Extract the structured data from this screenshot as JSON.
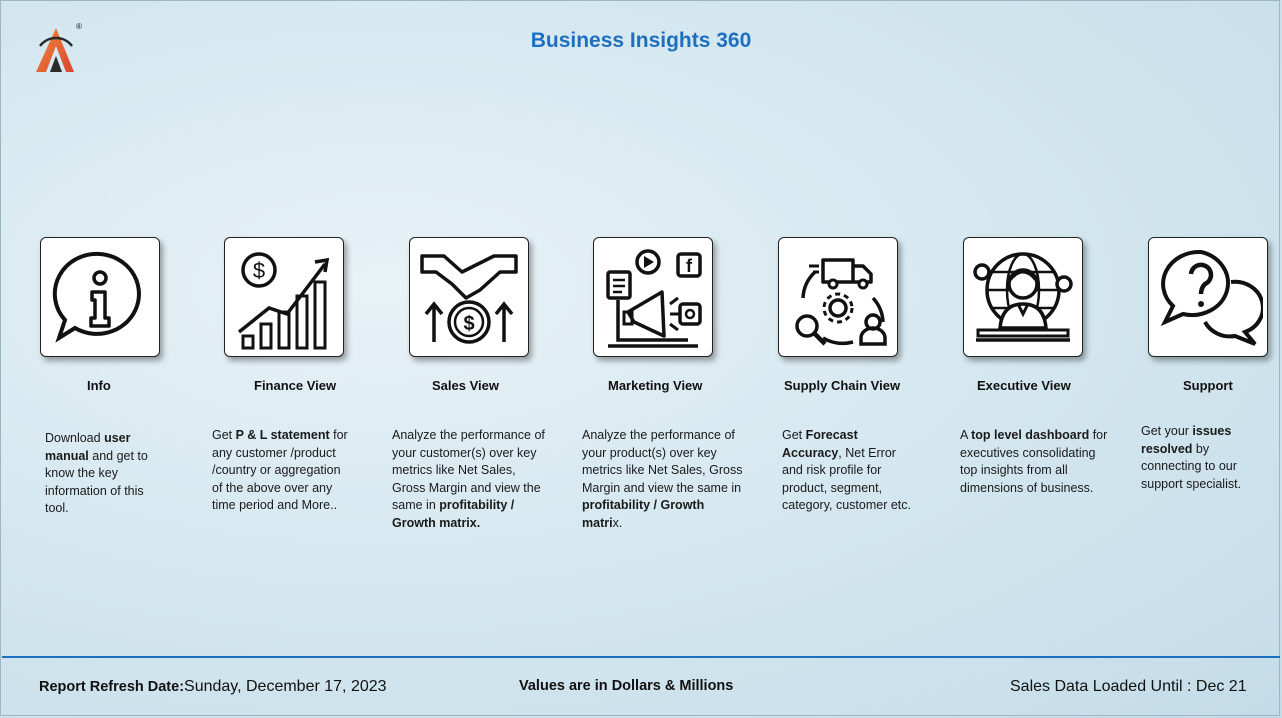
{
  "header": {
    "title": "Business Insights 360",
    "logo_icon": "atliq-logo-icon",
    "registered_mark": "®"
  },
  "tiles": [
    {
      "label": "Info",
      "icon": "info-bubble-icon",
      "desc": [
        [
          " Download ",
          false
        ],
        [
          "user manual",
          true
        ],
        [
          " and get to know the key information of this tool.",
          false
        ]
      ]
    },
    {
      "label": "Finance View",
      "icon": "finance-growth-chart-icon",
      "desc": [
        [
          "Get  ",
          false
        ],
        [
          "P & L statement",
          true
        ],
        [
          " for any customer /product /country or aggregation of the above over any time period and More..",
          false
        ]
      ]
    },
    {
      "label": "Sales View",
      "icon": "sales-handshake-icon",
      "desc": [
        [
          "Analyze the performance of your customer(s) over key metrics like Net Sales, Gross Margin and view the same in ",
          false
        ],
        [
          "profitability / Growth matrix.",
          true
        ]
      ]
    },
    {
      "label": "Marketing View",
      "icon": "marketing-megaphone-icon",
      "desc": [
        [
          " Analyze the performance of your product(s) over key metrics like Net Sales, Gross Margin and view the same in ",
          false
        ],
        [
          "profitability / Growth matri",
          true
        ],
        [
          "x.",
          false
        ]
      ]
    },
    {
      "label": "Supply Chain View",
      "icon": "supply-chain-truck-icon",
      "desc": [
        [
          "Get ",
          false
        ],
        [
          "Forecast Accuracy",
          true
        ],
        [
          ", Net Error and risk profile for product, segment, category, customer etc.",
          false
        ]
      ]
    },
    {
      "label": "Executive View",
      "icon": "executive-globe-icon",
      "desc": [
        [
          " A ",
          false
        ],
        [
          "top level dashboard",
          true
        ],
        [
          " for executives consolidating top insights from all dimensions of business.",
          false
        ]
      ]
    },
    {
      "label": "Support",
      "icon": "support-question-bubble-icon",
      "desc": [
        [
          "Get your ",
          false
        ],
        [
          "issues resolved",
          true
        ],
        [
          " by connecting to our support specialist.",
          false
        ]
      ]
    }
  ],
  "footer": {
    "refresh_label": "Report Refresh Date:",
    "refresh_value": "Sunday, December 17, 2023",
    "units_note": "Values are in Dollars & Millions",
    "loaded_label": "Sales Data Loaded Until : Dec 21"
  },
  "colors": {
    "title": "#1f6fbf",
    "divider": "#1f6fbf",
    "logo_orange": "#e8663a"
  }
}
